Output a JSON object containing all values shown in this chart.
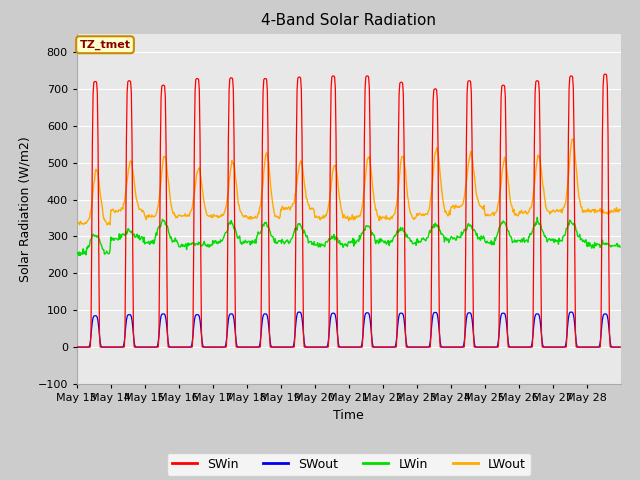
{
  "title": "4-Band Solar Radiation",
  "xlabel": "Time",
  "ylabel": "Solar Radiation (W/m2)",
  "annotation_text": "TZ_tmet",
  "annotation_bg": "#ffffcc",
  "annotation_border": "#cc8800",
  "annotation_text_color": "#8b0000",
  "ylim": [
    -100,
    850
  ],
  "yticks": [
    -100,
    0,
    100,
    200,
    300,
    400,
    500,
    600,
    700,
    800
  ],
  "n_days": 16,
  "hours_per_day": 24,
  "dt": 0.5,
  "SWin_color": "#ff0000",
  "SWout_color": "#0000ee",
  "LWin_color": "#00dd00",
  "LWout_color": "#ffaa00",
  "legend_labels": [
    "SWin",
    "SWout",
    "LWin",
    "LWout"
  ],
  "fig_bg_color": "#cccccc",
  "plot_bg": "#e8e8e8",
  "grid_color": "#ffffff",
  "legend_bg": "#ffffff",
  "xtick_labels": [
    "May 13",
    "May 14",
    "May 15",
    "May 16",
    "May 17",
    "May 18",
    "May 19",
    "May 20",
    "May 21",
    "May 22",
    "May 23",
    "May 24",
    "May 25",
    "May 26",
    "May 27",
    "May 28"
  ],
  "day_peak_SW": [
    720,
    722,
    710,
    728,
    730,
    728,
    732,
    735,
    735,
    718,
    700,
    722,
    710,
    722,
    735,
    740
  ],
  "day_peak_LWout": [
    480,
    505,
    520,
    485,
    505,
    525,
    500,
    497,
    517,
    520,
    540,
    525,
    510,
    520,
    565,
    365
  ],
  "day_peak_LWin": [
    310,
    315,
    345,
    280,
    335,
    335,
    335,
    300,
    325,
    320,
    335,
    330,
    340,
    340,
    340,
    280
  ],
  "day_night_LWout": [
    335,
    370,
    355,
    355,
    355,
    350,
    375,
    350,
    350,
    350,
    360,
    380,
    360,
    365,
    370,
    370
  ],
  "day_base_LWin": [
    255,
    295,
    285,
    275,
    285,
    285,
    285,
    275,
    285,
    285,
    290,
    295,
    285,
    290,
    290,
    275
  ],
  "day_peak_SWout": [
    85,
    88,
    90,
    88,
    90,
    90,
    95,
    92,
    93,
    92,
    94,
    93,
    92,
    90,
    95,
    90
  ]
}
